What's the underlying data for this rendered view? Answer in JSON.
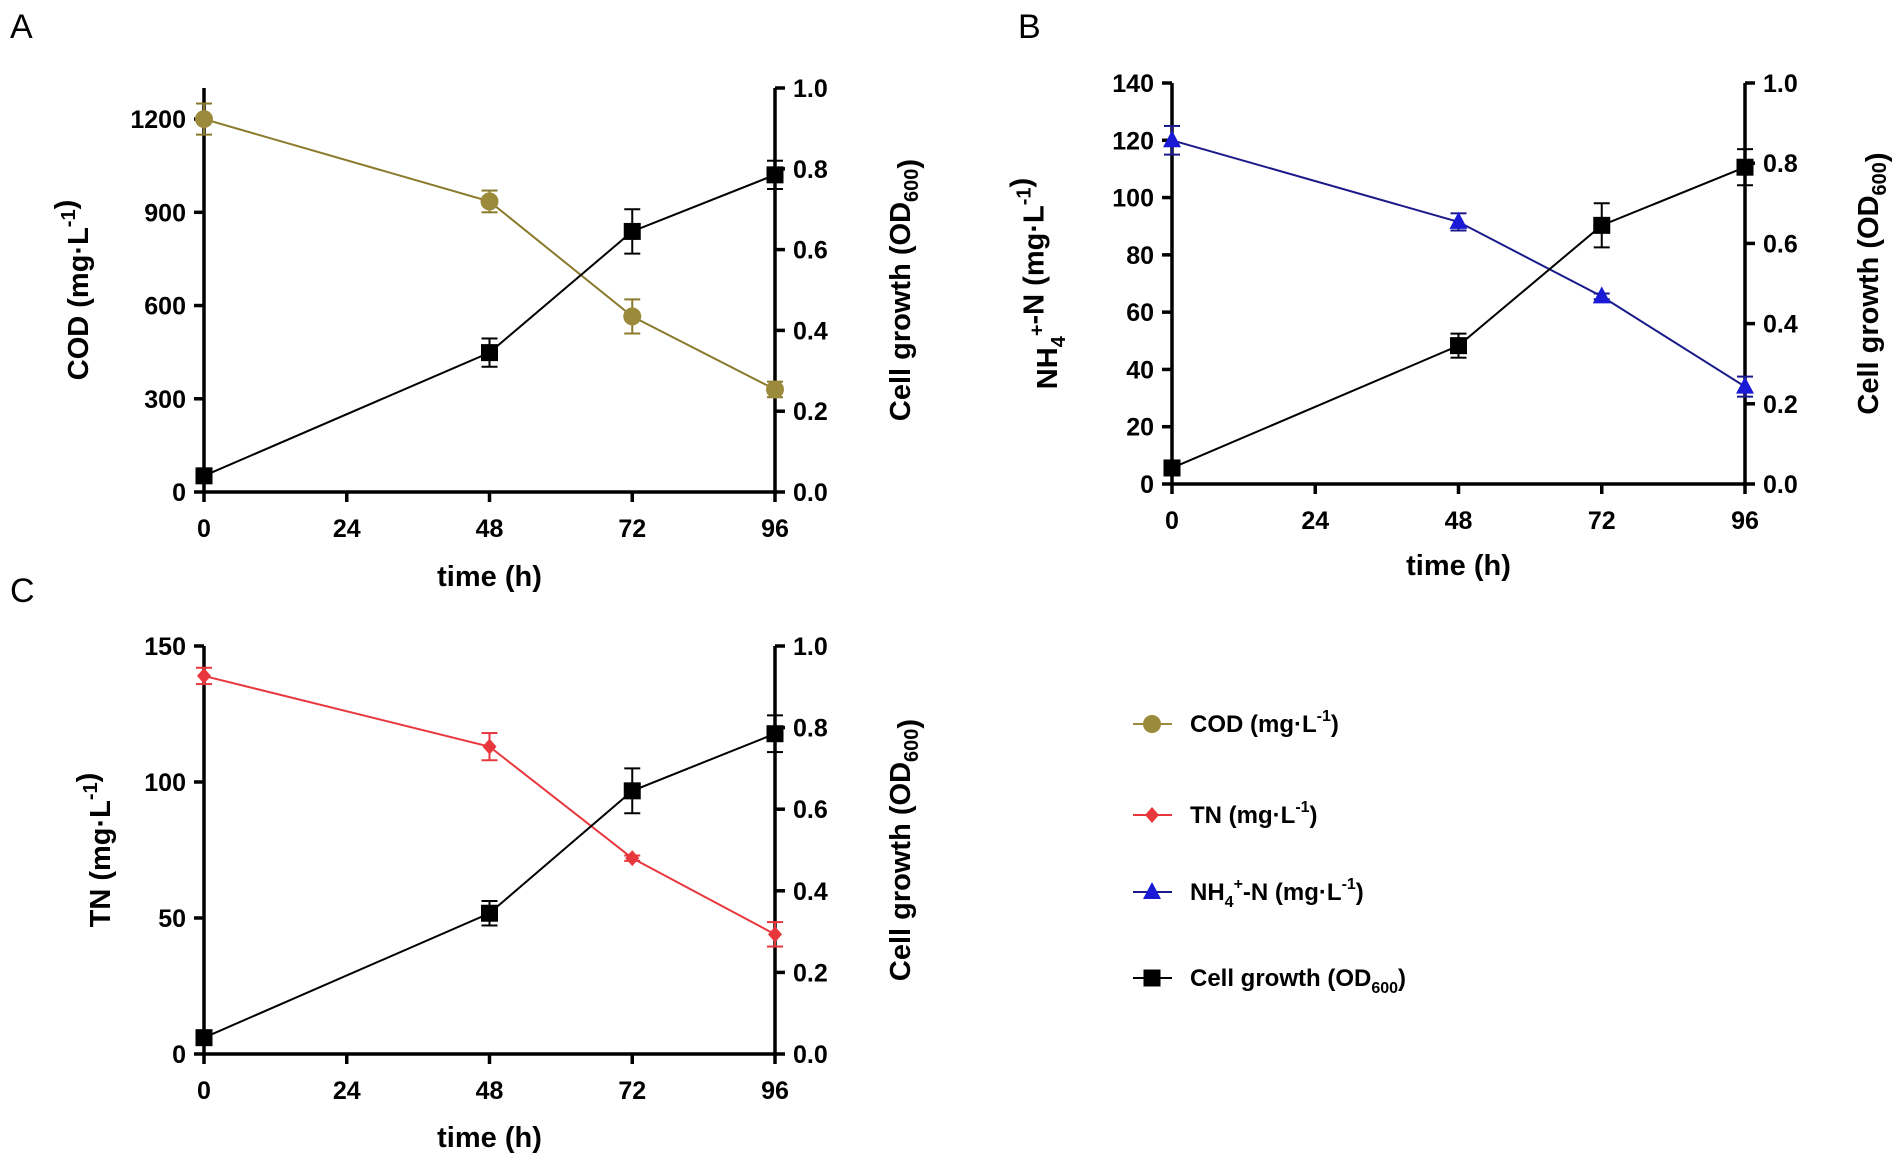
{
  "legend": {
    "items": [
      {
        "parts": [
          "COD (mg·L",
          "-1",
          ")"
        ],
        "color": "#9b8a3c",
        "marker": "circle",
        "line": "#9b8a3c"
      },
      {
        "parts": [
          "TN (mg·L",
          "-1",
          ")"
        ],
        "color": "#e8383d",
        "marker": "diamond",
        "line": "#e8383d"
      },
      {
        "parts": [
          "NH",
          "4",
          "+",
          "-N (mg·L",
          "-1",
          ")"
        ],
        "color": "#1a1ad6",
        "marker": "triangle",
        "line": "#1a1a8a"
      },
      {
        "parts": [
          "Cell growth (OD",
          "600",
          ")"
        ],
        "color": "#000000",
        "marker": "square",
        "line": "#000000"
      }
    ]
  },
  "chart_data": [
    {
      "panel": "A",
      "type": "line",
      "xlabel": "time (h)",
      "x_ticks": [
        0,
        24,
        48,
        72,
        96
      ],
      "xlim": [
        0,
        96
      ],
      "ylabel_left": "COD (mg·L-1)",
      "ylim_left": [
        0,
        1300
      ],
      "yticks_left": [
        0,
        300,
        600,
        900,
        1200
      ],
      "ylabel_right": "Cell growth (OD600)",
      "ylim_right": [
        0,
        1.0
      ],
      "yticks_right": [
        0.0,
        0.2,
        0.4,
        0.6,
        0.8,
        1.0
      ],
      "series": [
        {
          "name": "COD (mg·L-1)",
          "axis": "left",
          "marker": "circle",
          "color": "#9b8a3c",
          "line": "#8a7a2c",
          "x": [
            0,
            48,
            72,
            96
          ],
          "values": [
            1200,
            935,
            565,
            330
          ],
          "err": [
            50,
            35,
            55,
            25
          ]
        },
        {
          "name": "Cell growth (OD600)",
          "axis": "right",
          "marker": "square",
          "color": "#000000",
          "line": "#000000",
          "x": [
            0,
            48,
            72,
            96
          ],
          "values": [
            0.04,
            0.345,
            0.645,
            0.785
          ],
          "err": [
            0.008,
            0.035,
            0.055,
            0.035
          ]
        }
      ]
    },
    {
      "panel": "B",
      "type": "line",
      "xlabel": "time (h)",
      "x_ticks": [
        0,
        24,
        48,
        72,
        96
      ],
      "xlim": [
        0,
        96
      ],
      "ylabel_left": "NH4+-N (mg·L-1)",
      "ylim_left": [
        0,
        140
      ],
      "yticks_left": [
        0,
        20,
        40,
        60,
        80,
        100,
        120,
        140
      ],
      "ylabel_right": "Cell growth (OD600)",
      "ylim_right": [
        0,
        1.0
      ],
      "yticks_right": [
        0.0,
        0.2,
        0.4,
        0.6,
        0.8,
        1.0
      ],
      "series": [
        {
          "name": "NH4+-N (mg·L-1)",
          "axis": "left",
          "marker": "triangle",
          "color": "#1a1ad6",
          "line": "#1a1a8a",
          "x": [
            0,
            48,
            72,
            96
          ],
          "values": [
            120,
            91.5,
            65.5,
            34
          ],
          "err": [
            5,
            3,
            1,
            3.5
          ]
        },
        {
          "name": "Cell growth (OD600)",
          "axis": "right",
          "marker": "square",
          "color": "#000000",
          "line": "#000000",
          "x": [
            0,
            48,
            72,
            96
          ],
          "values": [
            0.04,
            0.345,
            0.645,
            0.79
          ],
          "err": [
            0.008,
            0.03,
            0.055,
            0.045
          ]
        }
      ]
    },
    {
      "panel": "C",
      "type": "line",
      "xlabel": "time (h)",
      "x_ticks": [
        0,
        24,
        48,
        72,
        96
      ],
      "xlim": [
        0,
        96
      ],
      "ylabel_left": "TN (mg·L-1)",
      "ylim_left": [
        0,
        150
      ],
      "yticks_left": [
        0,
        50,
        100,
        150
      ],
      "ylabel_right": "Cell growth (OD600)",
      "ylim_right": [
        0,
        1.0
      ],
      "yticks_right": [
        0.0,
        0.2,
        0.4,
        0.6,
        0.8,
        1.0
      ],
      "series": [
        {
          "name": "TN (mg·L-1)",
          "axis": "left",
          "marker": "diamond",
          "color": "#e8383d",
          "line": "#e8383d",
          "x": [
            0,
            48,
            72,
            96
          ],
          "values": [
            139,
            113,
            72,
            44
          ],
          "err": [
            3,
            5,
            1,
            4.5
          ]
        },
        {
          "name": "Cell growth (OD600)",
          "axis": "right",
          "marker": "square",
          "color": "#000000",
          "line": "#000000",
          "x": [
            0,
            48,
            72,
            96
          ],
          "values": [
            0.04,
            0.345,
            0.645,
            0.785
          ],
          "err": [
            0.008,
            0.03,
            0.055,
            0.045
          ]
        }
      ]
    }
  ]
}
